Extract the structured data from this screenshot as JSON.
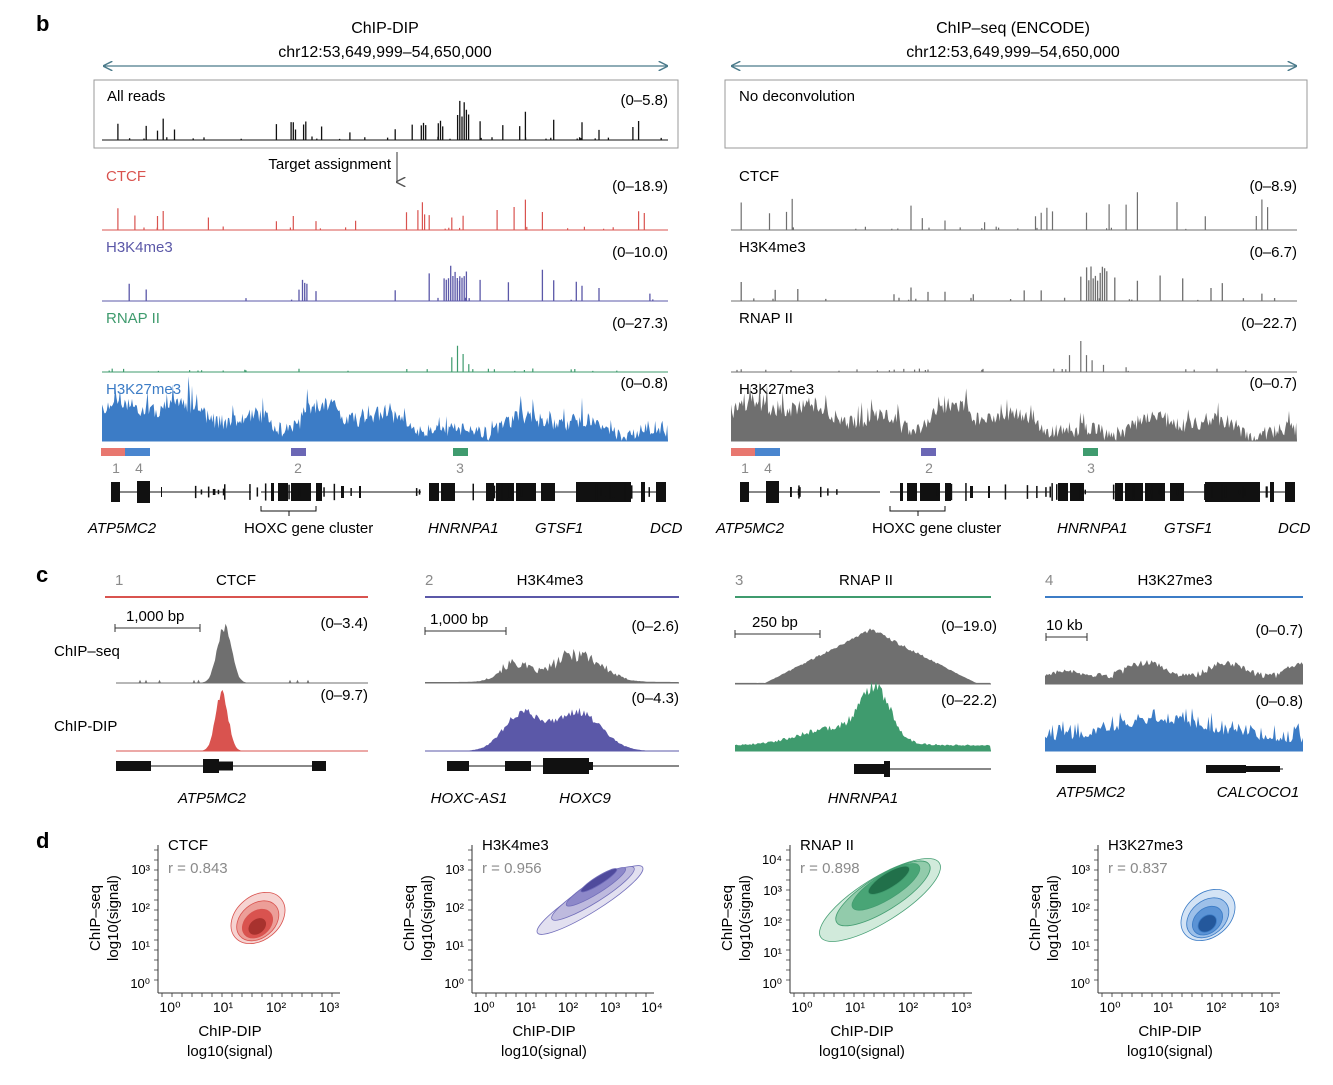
{
  "colors": {
    "ctcf": "#d9534f",
    "h3k4me3": "#5b58a8",
    "rnap": "#3f9b6e",
    "h3k27me3": "#3c7cc6",
    "gray": "#6f6f6f",
    "black": "#111111",
    "bar_ctcf": "#e8776f",
    "bar_h3k4": "#6b67b5",
    "bar_rnap": "#3f9b6e",
    "bar_k27": "#4a86cf"
  },
  "panel_b": {
    "letter": "b",
    "left": {
      "title": "ChIP-DIP",
      "locus": "chr12:53,649,999–54,650,000",
      "all_reads_label": "All reads",
      "all_reads_range": "(0–5.8)",
      "target_assignment": "Target assignment",
      "tracks": [
        {
          "label": "CTCF",
          "range": "(0–18.9)"
        },
        {
          "label": "H3K4me3",
          "range": "(0–10.0)"
        },
        {
          "label": "RNAP II",
          "range": "(0–27.3)"
        },
        {
          "label": "H3K27me3",
          "range": "(0–0.8)"
        }
      ],
      "region_numbers": [
        "1",
        "4",
        "2",
        "3"
      ],
      "genes": [
        "ATP5MC2",
        "HOXC gene cluster",
        "HNRNPA1",
        "GTSF1",
        "DCD"
      ]
    },
    "right": {
      "title": "ChIP–seq (ENCODE)",
      "locus": "chr12:53,649,999–54,650,000",
      "no_deconv_label": "No deconvolution",
      "tracks": [
        {
          "label": "CTCF",
          "range": "(0–8.9)"
        },
        {
          "label": "H3K4me3",
          "range": "(0–6.7)"
        },
        {
          "label": "RNAP II",
          "range": "(0–22.7)"
        },
        {
          "label": "H3K27me3",
          "range": "(0–0.7)"
        }
      ],
      "region_numbers": [
        "1",
        "4",
        "2",
        "3"
      ],
      "genes": [
        "ATP5MC2",
        "HOXC gene cluster",
        "HNRNPA1",
        "GTSF1",
        "DCD"
      ]
    }
  },
  "panel_c": {
    "letter": "c",
    "row_labels": [
      "ChIP–seq",
      "ChIP-DIP"
    ],
    "panels": [
      {
        "num": "1",
        "target": "CTCF",
        "scale": "1,000 bp",
        "range_seq": "(0–3.4)",
        "range_dip": "(0–9.7)",
        "genes": [
          "ATP5MC2"
        ]
      },
      {
        "num": "2",
        "target": "H3K4me3",
        "scale": "1,000 bp",
        "range_seq": "(0–2.6)",
        "range_dip": "(0–4.3)",
        "genes": [
          "HOXC-AS1",
          "HOXC9"
        ]
      },
      {
        "num": "3",
        "target": "RNAP II",
        "scale": "250 bp",
        "range_seq": "(0–19.0)",
        "range_dip": "(0–22.2)",
        "genes": [
          "HNRNPA1"
        ]
      },
      {
        "num": "4",
        "target": "H3K27me3",
        "scale": "10 kb",
        "range_seq": "(0–0.7)",
        "range_dip": "(0–0.8)",
        "genes": [
          "ATP5MC2",
          "CALCOCO1"
        ]
      }
    ]
  },
  "panel_d": {
    "letter": "d",
    "ylabel_1": "ChIP–seq",
    "ylabel_2": "log10(signal)",
    "xlabel_1": "ChIP-DIP",
    "xlabel_2": "log10(signal)",
    "plots": [
      {
        "target": "CTCF",
        "r": "r = 0.843"
      },
      {
        "target": "H3K4me3",
        "r": "r = 0.956"
      },
      {
        "target": "RNAP II",
        "r": "r = 0.898"
      },
      {
        "target": "H3K27me3",
        "r": "r = 0.837"
      }
    ]
  }
}
